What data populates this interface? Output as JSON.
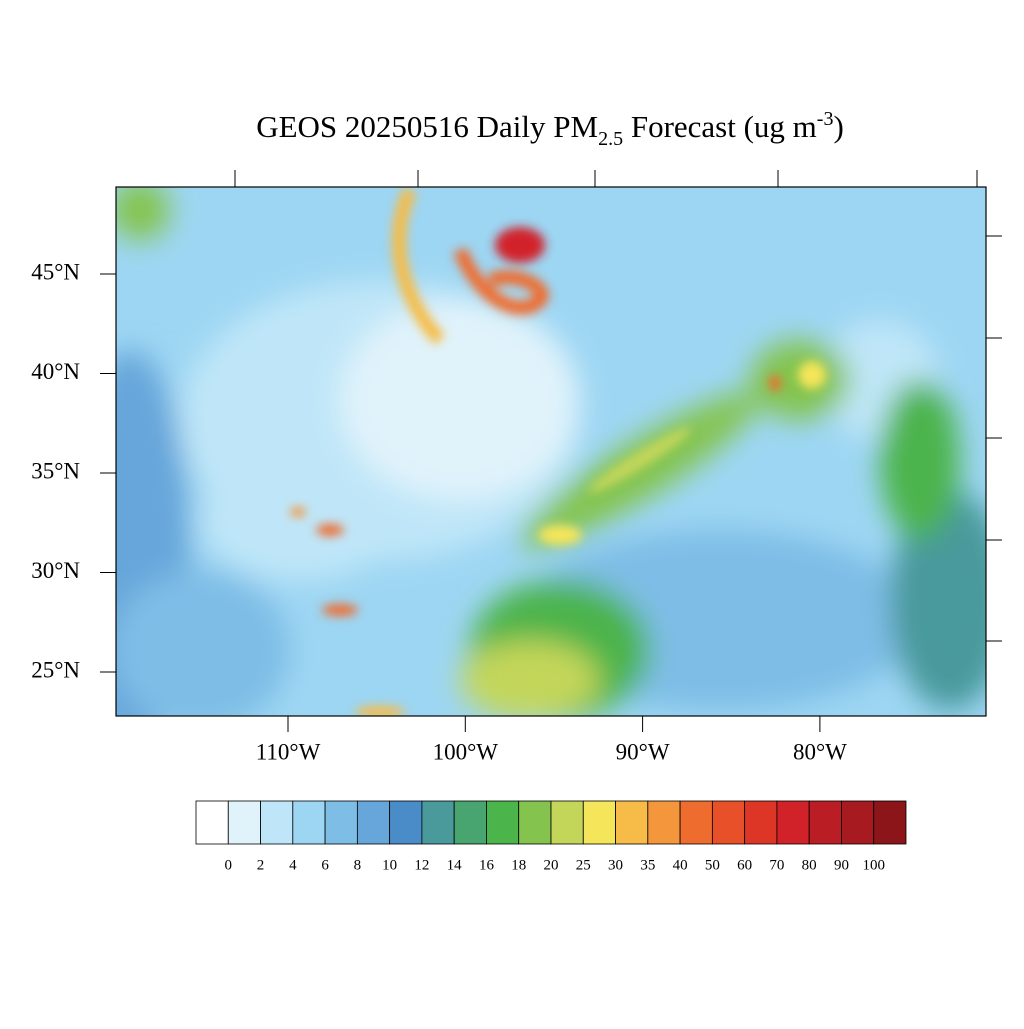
{
  "title": {
    "main": "GEOS 20250516 Daily PM",
    "sub": "2.5",
    "unit": " Forecast (ug m",
    "sup": "-3",
    "end": ")"
  },
  "map": {
    "lat_ticks": [
      {
        "value": 45,
        "label": "45°N"
      },
      {
        "value": 40,
        "label": "40°N"
      },
      {
        "value": 35,
        "label": "35°N"
      },
      {
        "value": 30,
        "label": "30°N"
      },
      {
        "value": 25,
        "label": "25°N"
      }
    ],
    "lon_ticks": [
      {
        "value": -110,
        "label": "110°W"
      },
      {
        "value": -100,
        "label": "100°W"
      },
      {
        "value": -90,
        "label": "90°W"
      },
      {
        "value": -80,
        "label": "80°W"
      }
    ]
  },
  "colorbar": {
    "levels": [
      0,
      2,
      4,
      6,
      8,
      10,
      12,
      14,
      16,
      18,
      20,
      25,
      30,
      35,
      40,
      50,
      60,
      70,
      80,
      90,
      100
    ],
    "colors": [
      "#ffffff",
      "#e0f3fb",
      "#bfe6f8",
      "#9dd6f3",
      "#7ebde6",
      "#66a6da",
      "#4a8cc7",
      "#4a9a9c",
      "#48a56f",
      "#4bb44b",
      "#84c44e",
      "#c3d65a",
      "#f5e55a",
      "#f6bc47",
      "#f4973c",
      "#ef6c2f",
      "#e8502a",
      "#dd3526",
      "#d12229",
      "#bb1d24",
      "#a61a20",
      "#8b1519"
    ]
  }
}
